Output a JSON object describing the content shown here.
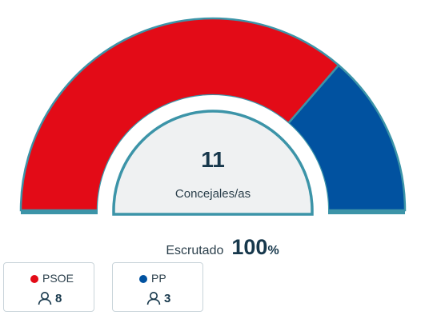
{
  "chart_data": {
    "type": "pie",
    "variant": "half-donut",
    "categories": [
      "PSOE",
      "PP"
    ],
    "values": [
      8,
      3
    ],
    "colors": [
      "#e30b17",
      "#0152a0"
    ],
    "total": "11",
    "total_label": "Concejales/as"
  },
  "scrutiny": {
    "label": "Escrutado",
    "value": "100",
    "unit": "%"
  },
  "parties": [
    {
      "name": "PSOE",
      "seats": "8",
      "color": "#e30b17"
    },
    {
      "name": "PP",
      "seats": "3",
      "color": "#0152a0"
    }
  ],
  "icons": {
    "seats": "user-icon"
  }
}
